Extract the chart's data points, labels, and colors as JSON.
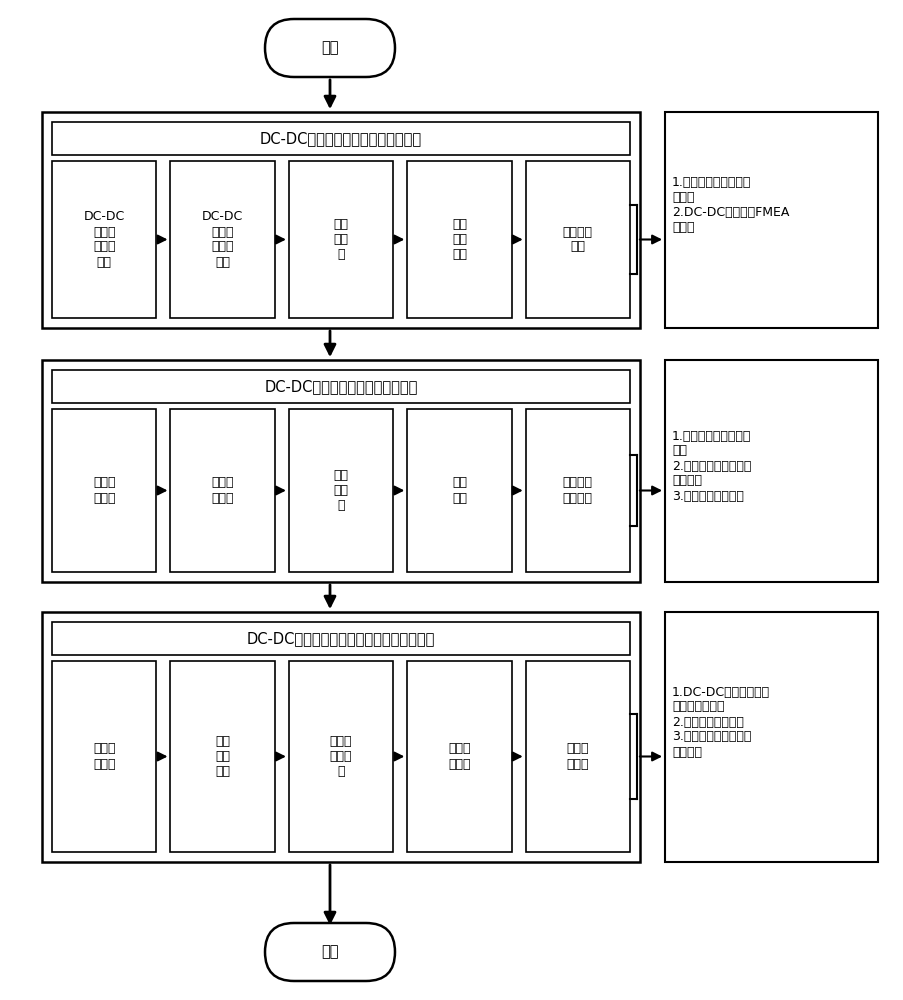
{
  "bg_color": "#ffffff",
  "line_color": "#000000",
  "box_fill": "#ffffff",
  "font_size_title": 10.5,
  "font_size_small": 9.0,
  "start_label": "开始",
  "end_label": "结束",
  "section1_title": "DC-DC电源模块失效模式与影响分析",
  "section1_boxes": [
    "DC-DC\n电源模\n块工作\n原理",
    "DC-DC\n电源模\n块内部\n结构",
    "元器\n件组\n成",
    "具体\n失效\n模式",
    "具体失效\n机理"
  ],
  "section1_result": "1.失效模式和失效机理\n总结表\n2.DC-DC电源模块FMEA\n分析表",
  "section2_title": "DC-DC电源模块薄弱环节仿真研究",
  "section2_boxes": [
    "确定仿\n真环境",
    "建模简\n化原则",
    "建模\n与装\n配",
    "材料\n定义",
    "具体载荷\n施加方案"
  ],
  "section2_result": "1.主要发热器件的发热\n功率\n2.主要发热器件的材料\n特性参数\n3.仿真确定薄弱环节",
  "section3_title": "DC-DC电源模块可靠性强化试验与结果分析",
  "section3_boxes": [
    "调研相\n关文献",
    "设计\n试验\n方法",
    "进行试\n验前准\n备",
    "搭建试\n验系统",
    "进行强\n化试验"
  ],
  "section3_result": "1.DC-DC电源模块可靠\n性强化试验平台\n2.强化试验数据分析\n3.结合仿真结果，确定\n薄弱环节"
}
